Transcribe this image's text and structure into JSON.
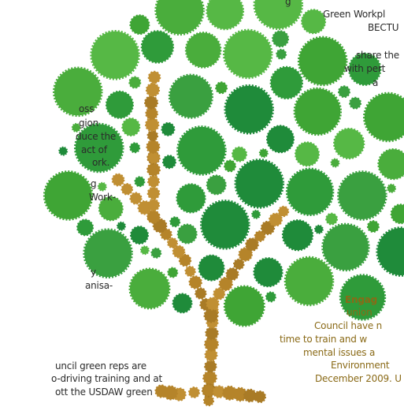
{
  "left_text": {
    "lines": [
      "oss",
      "gion",
      "duce the",
      "act of",
      "ork.",
      "g",
      "Work-",
      "y",
      "anisa-"
    ]
  },
  "bottom_left_text": {
    "lines": [
      "uncil green reps are",
      "o-driving training and at",
      "ott the USDAW green"
    ]
  },
  "top_right_text": {
    "lines": [
      "g",
      "Green Workpl",
      "BECTU",
      "share the",
      "with pert",
      "a"
    ]
  },
  "bottom_right_text": {
    "heading": "Engag",
    "lines": [
      "union",
      "Council have n",
      "time to train and w",
      "mental issues a",
      "Environment",
      "December 2009. U"
    ]
  }
}
